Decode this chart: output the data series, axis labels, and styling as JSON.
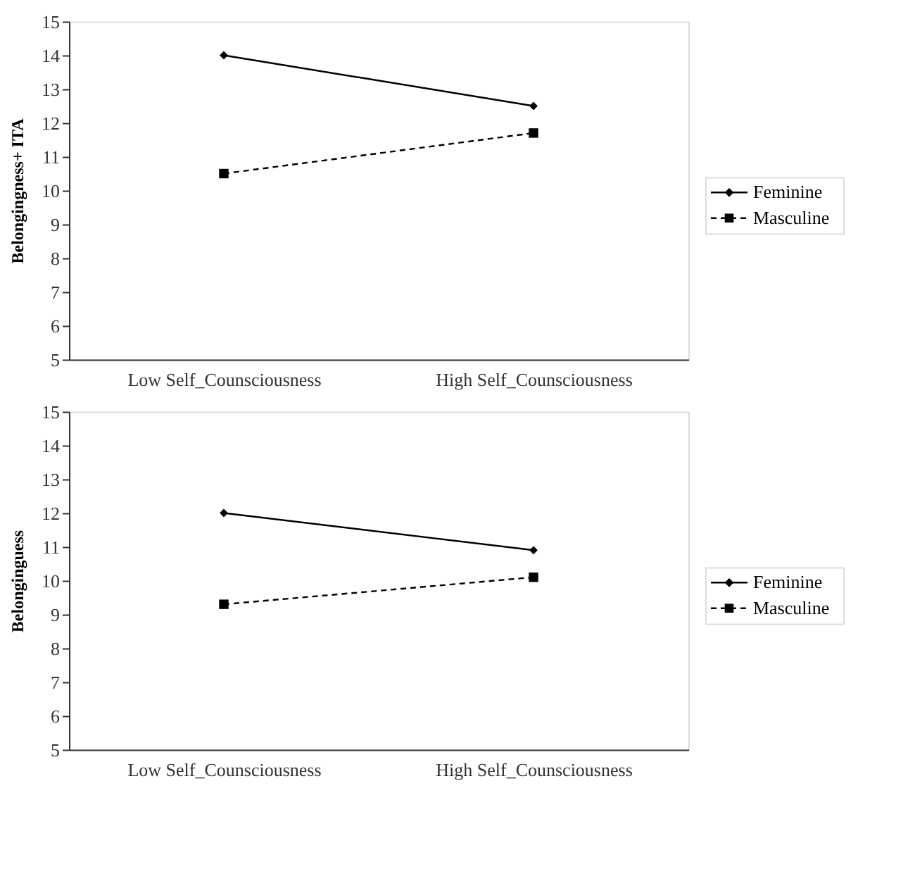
{
  "chart_data": [
    {
      "type": "line",
      "ylabel": "Belongingness+ ITA",
      "categories": [
        "Low Self_Counsciousness",
        "High Self_Counsciousness"
      ],
      "ylim": [
        5,
        15
      ],
      "yticks": [
        5,
        6,
        7,
        8,
        9,
        10,
        11,
        12,
        13,
        14,
        15
      ],
      "grid": false,
      "legend": "right",
      "series": [
        {
          "name": "Feminine",
          "color": "#000000",
          "values": [
            14.0,
            12.5
          ],
          "line_style": "solid",
          "marker": "diamond"
        },
        {
          "name": "Masculine",
          "color": "#000000",
          "values": [
            10.5,
            11.7
          ],
          "line_style": "dashed",
          "marker": "square"
        }
      ]
    },
    {
      "type": "line",
      "ylabel": "Belonginguess",
      "categories": [
        "Low Self_Counsciousness",
        "High Self_Counsciousness"
      ],
      "ylim": [
        5,
        15
      ],
      "yticks": [
        5,
        6,
        7,
        8,
        9,
        10,
        11,
        12,
        13,
        14,
        15
      ],
      "grid": false,
      "legend": "right",
      "series": [
        {
          "name": "Feminine",
          "color": "#000000",
          "values": [
            12.0,
            10.9
          ],
          "line_style": "solid",
          "marker": "diamond"
        },
        {
          "name": "Masculine",
          "color": "#000000",
          "values": [
            9.3,
            10.1
          ],
          "line_style": "dashed",
          "marker": "square"
        }
      ]
    }
  ]
}
